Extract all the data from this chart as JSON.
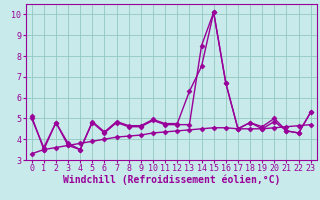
{
  "x": [
    0,
    1,
    2,
    3,
    4,
    5,
    6,
    7,
    8,
    9,
    10,
    11,
    12,
    13,
    14,
    15,
    16,
    17,
    18,
    19,
    20,
    21,
    22,
    23
  ],
  "line1": [
    5.1,
    3.5,
    4.8,
    3.7,
    3.5,
    4.8,
    4.3,
    4.8,
    4.6,
    4.6,
    4.9,
    4.7,
    4.7,
    4.7,
    8.5,
    10.1,
    6.7,
    4.5,
    4.8,
    4.6,
    5.0,
    4.4,
    4.3,
    5.3
  ],
  "line2": [
    5.0,
    3.6,
    4.8,
    3.8,
    3.5,
    4.85,
    4.35,
    4.85,
    4.65,
    4.65,
    4.95,
    4.75,
    4.75,
    6.3,
    7.5,
    10.1,
    6.7,
    4.5,
    4.8,
    4.5,
    4.85,
    4.4,
    4.3,
    5.3
  ],
  "line3": [
    3.3,
    3.5,
    3.6,
    3.7,
    3.8,
    3.9,
    4.0,
    4.1,
    4.15,
    4.2,
    4.3,
    4.35,
    4.4,
    4.45,
    4.5,
    4.55,
    4.55,
    4.5,
    4.5,
    4.5,
    4.55,
    4.6,
    4.65,
    4.7
  ],
  "line_color": "#990099",
  "bg_color": "#c8eaea",
  "grid_color": "#90c8c0",
  "xlabel": "Windchill (Refroidissement éolien,°C)",
  "xlim": [
    -0.5,
    23.5
  ],
  "ylim": [
    3.0,
    10.5
  ],
  "yticks": [
    3,
    4,
    5,
    6,
    7,
    8,
    9,
    10
  ],
  "xticks": [
    0,
    1,
    2,
    3,
    4,
    5,
    6,
    7,
    8,
    9,
    10,
    11,
    12,
    13,
    14,
    15,
    16,
    17,
    18,
    19,
    20,
    21,
    22,
    23
  ],
  "marker": "D",
  "markersize": 2.5,
  "linewidth": 1.0,
  "xlabel_fontsize": 7.0,
  "tick_fontsize": 6.0,
  "fig_width": 3.2,
  "fig_height": 2.0,
  "dpi": 100
}
